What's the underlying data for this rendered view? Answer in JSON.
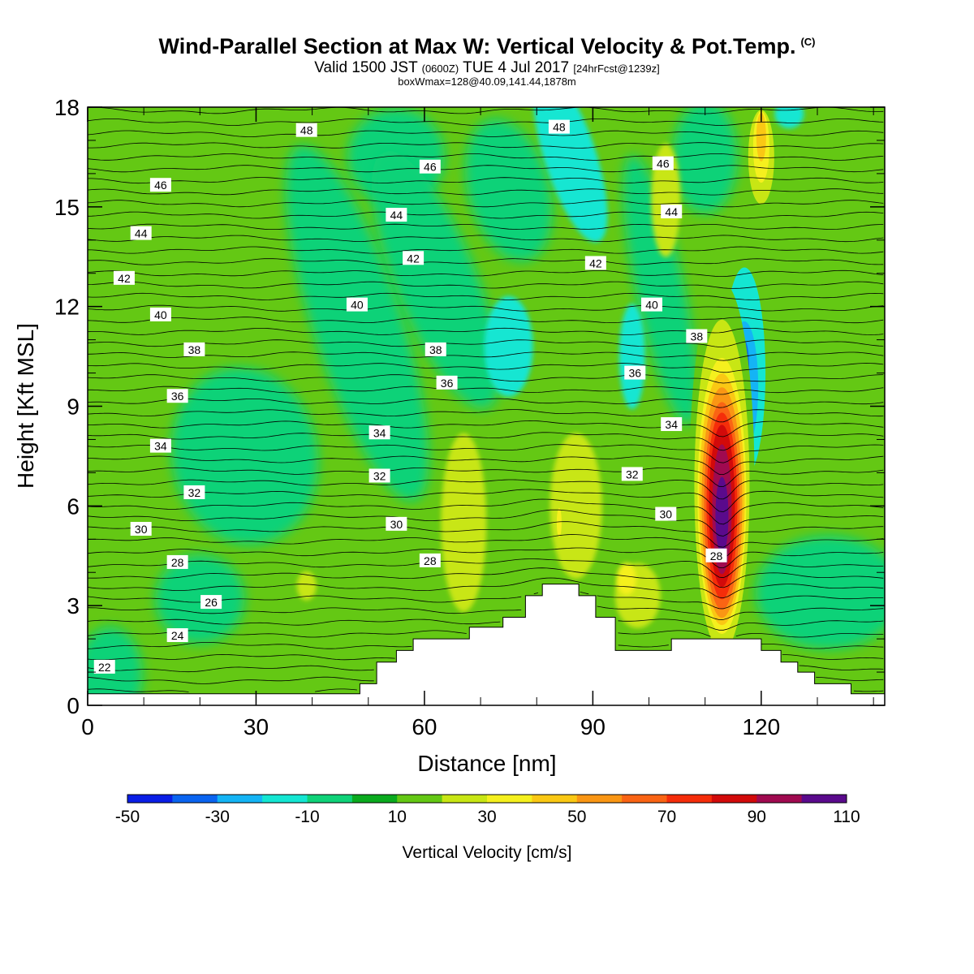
{
  "title": {
    "main": "Wind-Parallel Section at Max W: Vertical Velocity & Pot.Temp.",
    "copyright": "(C)",
    "valid_prefix": "Valid 1500 JST",
    "valid_z": "(0600Z)",
    "valid_date": "TUE 4 Jul 2017",
    "valid_fcst": "[24hrFcst@1239z]",
    "box_info": "boxWmax=128@40.09,141.44,1878m"
  },
  "chart_data": {
    "type": "heatmap",
    "xlabel": "Distance [nm]",
    "ylabel": "Height [Kft MSL]",
    "xlim": [
      0,
      142
    ],
    "ylim": [
      0,
      18
    ],
    "x_ticks": [
      0,
      30,
      60,
      90,
      120
    ],
    "y_ticks": [
      0,
      3,
      6,
      9,
      12,
      15,
      18
    ],
    "colorbar": {
      "label": "Vertical Velocity [cm/s]",
      "ticks": [
        -50,
        -30,
        -10,
        10,
        30,
        50,
        70,
        90,
        110
      ],
      "levels": [
        -50,
        -40,
        -30,
        -20,
        -10,
        0,
        10,
        20,
        30,
        40,
        50,
        60,
        70,
        80,
        90,
        100,
        110
      ],
      "colors": [
        "#0a1ee6",
        "#0a64f0",
        "#14b4f5",
        "#14e6d2",
        "#0fd278",
        "#0aaa1e",
        "#64c814",
        "#c8e614",
        "#f5f01e",
        "#fac814",
        "#fa9614",
        "#fa6414",
        "#f52d0a",
        "#d20a0a",
        "#a00a50",
        "#5a0a8c"
      ]
    },
    "terrain_kft": [
      [
        0,
        0.35
      ],
      [
        48.5,
        0.35
      ],
      [
        48.5,
        0.65
      ],
      [
        51.5,
        0.65
      ],
      [
        51.5,
        1.3
      ],
      [
        55,
        1.3
      ],
      [
        55,
        1.65
      ],
      [
        58,
        1.65
      ],
      [
        58,
        2.0
      ],
      [
        68,
        2.0
      ],
      [
        68,
        2.35
      ],
      [
        74,
        2.35
      ],
      [
        74,
        2.65
      ],
      [
        78,
        2.65
      ],
      [
        78,
        3.3
      ],
      [
        81,
        3.3
      ],
      [
        81,
        3.65
      ],
      [
        87.5,
        3.65
      ],
      [
        87.5,
        3.3
      ],
      [
        90.5,
        3.3
      ],
      [
        90.5,
        2.65
      ],
      [
        94,
        2.65
      ],
      [
        94,
        1.65
      ],
      [
        104,
        1.65
      ],
      [
        104,
        2.0
      ],
      [
        120,
        2.0
      ],
      [
        120,
        1.65
      ],
      [
        123.5,
        1.65
      ],
      [
        123.5,
        1.3
      ],
      [
        126.5,
        1.3
      ],
      [
        126.5,
        1.0
      ],
      [
        129.5,
        1.0
      ],
      [
        129.5,
        0.65
      ],
      [
        136,
        0.65
      ],
      [
        136,
        0.35
      ],
      [
        142,
        0.35
      ]
    ],
    "contours": {
      "variable": "potential temperature",
      "levels": [
        22,
        24,
        26,
        28,
        30,
        32,
        34,
        36,
        38,
        40,
        42,
        44,
        46,
        48
      ],
      "labels": [
        {
          "text": "22",
          "x": 3,
          "y": 1.15
        },
        {
          "text": "24",
          "x": 16,
          "y": 2.1
        },
        {
          "text": "26",
          "x": 22,
          "y": 3.1
        },
        {
          "text": "28",
          "x": 16,
          "y": 4.3
        },
        {
          "text": "28",
          "x": 61,
          "y": 4.35
        },
        {
          "text": "28",
          "x": 112,
          "y": 4.5
        },
        {
          "text": "30",
          "x": 9.5,
          "y": 5.3
        },
        {
          "text": "30",
          "x": 55,
          "y": 5.45
        },
        {
          "text": "30",
          "x": 103,
          "y": 5.75
        },
        {
          "text": "32",
          "x": 19,
          "y": 6.4
        },
        {
          "text": "32",
          "x": 52,
          "y": 6.9
        },
        {
          "text": "32",
          "x": 97,
          "y": 6.95
        },
        {
          "text": "34",
          "x": 13,
          "y": 7.8
        },
        {
          "text": "34",
          "x": 52,
          "y": 8.2
        },
        {
          "text": "34",
          "x": 104,
          "y": 8.45
        },
        {
          "text": "36",
          "x": 16,
          "y": 9.3
        },
        {
          "text": "36",
          "x": 64,
          "y": 9.7
        },
        {
          "text": "36",
          "x": 97.5,
          "y": 10.0
        },
        {
          "text": "38",
          "x": 19,
          "y": 10.7
        },
        {
          "text": "38",
          "x": 62,
          "y": 10.7
        },
        {
          "text": "38",
          "x": 108.5,
          "y": 11.1
        },
        {
          "text": "40",
          "x": 13,
          "y": 11.75
        },
        {
          "text": "40",
          "x": 48,
          "y": 12.05
        },
        {
          "text": "40",
          "x": 100.5,
          "y": 12.05
        },
        {
          "text": "42",
          "x": 6.5,
          "y": 12.85
        },
        {
          "text": "42",
          "x": 58,
          "y": 13.45
        },
        {
          "text": "42",
          "x": 90.5,
          "y": 13.3
        },
        {
          "text": "44",
          "x": 9.5,
          "y": 14.2
        },
        {
          "text": "44",
          "x": 55,
          "y": 14.75
        },
        {
          "text": "44",
          "x": 104,
          "y": 14.85
        },
        {
          "text": "46",
          "x": 13,
          "y": 15.65
        },
        {
          "text": "46",
          "x": 61,
          "y": 16.2
        },
        {
          "text": "46",
          "x": 102.5,
          "y": 16.3
        },
        {
          "text": "48",
          "x": 39,
          "y": 17.3
        },
        {
          "text": "48",
          "x": 84,
          "y": 17.4
        }
      ]
    },
    "features": [
      {
        "kind": "updraft max",
        "x": 113,
        "y": 5.5,
        "value_cm_s": 110
      },
      {
        "kind": "downdraft min",
        "x": 117,
        "y": 10.0,
        "value_cm_s": -40
      }
    ]
  }
}
